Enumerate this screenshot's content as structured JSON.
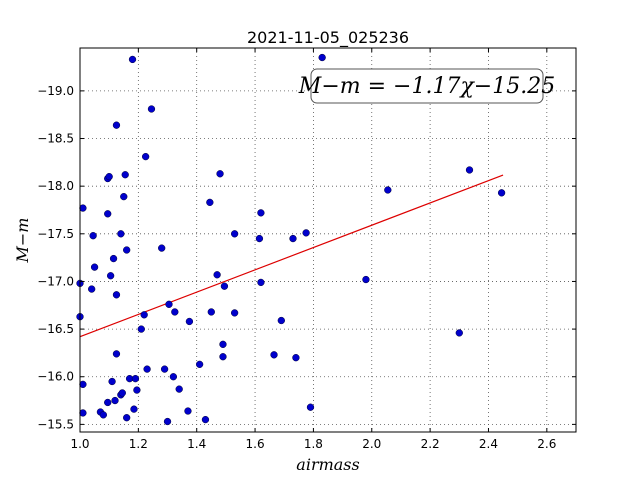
{
  "chart_data": {
    "type": "scatter",
    "title": "2021-11-05_025236",
    "xlabel": "airmass",
    "ylabel": "M−m",
    "xlim": [
      1.0,
      2.7
    ],
    "ylim": [
      -19.45,
      -15.42
    ],
    "y_inverted": true,
    "grid": true,
    "x_ticks": [
      1.0,
      1.2,
      1.4,
      1.6,
      1.8,
      2.0,
      2.2,
      2.4,
      2.6
    ],
    "x_tick_labels": [
      "1.0",
      "1.2",
      "1.4",
      "1.6",
      "1.8",
      "2.0",
      "2.2",
      "2.4",
      "2.6"
    ],
    "y_ticks": [
      -15.5,
      -16.0,
      -16.5,
      -17.0,
      -17.5,
      -18.0,
      -18.5,
      -19.0
    ],
    "y_tick_labels": [
      "−15.5",
      "−16.0",
      "−16.5",
      "−17.0",
      "−17.5",
      "−18.0",
      "−18.5",
      "−19.0"
    ],
    "annotation": "M−m = −1.17χ−15.25",
    "colors": {
      "points": "#0000cc",
      "fit": "#dd0000",
      "grid": "#555555"
    },
    "fit": {
      "slope": -1.17,
      "intercept": -15.25,
      "x_range": [
        1.0,
        2.45
      ]
    },
    "points": [
      [
        1.0,
        -16.63
      ],
      [
        1.0,
        -16.98
      ],
      [
        1.01,
        -17.77
      ],
      [
        1.01,
        -15.62
      ],
      [
        1.01,
        -15.92
      ],
      [
        1.04,
        -16.92
      ],
      [
        1.045,
        -17.48
      ],
      [
        1.05,
        -17.15
      ],
      [
        1.07,
        -15.63
      ],
      [
        1.08,
        -15.6
      ],
      [
        1.095,
        -15.73
      ],
      [
        1.095,
        -17.71
      ],
      [
        1.095,
        -18.08
      ],
      [
        1.1,
        -18.1
      ],
      [
        1.105,
        -17.06
      ],
      [
        1.11,
        -15.95
      ],
      [
        1.115,
        -17.24
      ],
      [
        1.12,
        -15.75
      ],
      [
        1.125,
        -18.64
      ],
      [
        1.125,
        -16.86
      ],
      [
        1.125,
        -16.24
      ],
      [
        1.14,
        -15.81
      ],
      [
        1.14,
        -17.5
      ],
      [
        1.145,
        -15.83
      ],
      [
        1.15,
        -17.89
      ],
      [
        1.155,
        -18.12
      ],
      [
        1.16,
        -15.57
      ],
      [
        1.16,
        -17.33
      ],
      [
        1.17,
        -15.98
      ],
      [
        1.18,
        -19.33
      ],
      [
        1.185,
        -15.66
      ],
      [
        1.19,
        -15.98
      ],
      [
        1.195,
        -15.86
      ],
      [
        1.21,
        -16.5
      ],
      [
        1.22,
        -16.65
      ],
      [
        1.225,
        -18.31
      ],
      [
        1.23,
        -16.08
      ],
      [
        1.245,
        -18.81
      ],
      [
        1.28,
        -17.35
      ],
      [
        1.29,
        -16.08
      ],
      [
        1.3,
        -15.53
      ],
      [
        1.305,
        -16.76
      ],
      [
        1.32,
        -16.0
      ],
      [
        1.325,
        -16.68
      ],
      [
        1.34,
        -15.87
      ],
      [
        1.37,
        -15.64
      ],
      [
        1.375,
        -16.58
      ],
      [
        1.41,
        -16.13
      ],
      [
        1.43,
        -15.55
      ],
      [
        1.445,
        -17.83
      ],
      [
        1.45,
        -16.68
      ],
      [
        1.47,
        -17.07
      ],
      [
        1.48,
        -18.13
      ],
      [
        1.49,
        -16.21
      ],
      [
        1.49,
        -16.34
      ],
      [
        1.495,
        -16.95
      ],
      [
        1.53,
        -17.5
      ],
      [
        1.53,
        -16.67
      ],
      [
        1.615,
        -17.45
      ],
      [
        1.62,
        -17.72
      ],
      [
        1.62,
        -16.99
      ],
      [
        1.665,
        -16.23
      ],
      [
        1.69,
        -16.59
      ],
      [
        1.73,
        -17.45
      ],
      [
        1.74,
        -16.2
      ],
      [
        1.775,
        -17.51
      ],
      [
        1.79,
        -15.68
      ],
      [
        1.83,
        -19.35
      ],
      [
        1.98,
        -17.02
      ],
      [
        2.055,
        -17.96
      ],
      [
        2.3,
        -16.46
      ],
      [
        2.335,
        -18.17
      ],
      [
        2.445,
        -17.93
      ]
    ]
  }
}
